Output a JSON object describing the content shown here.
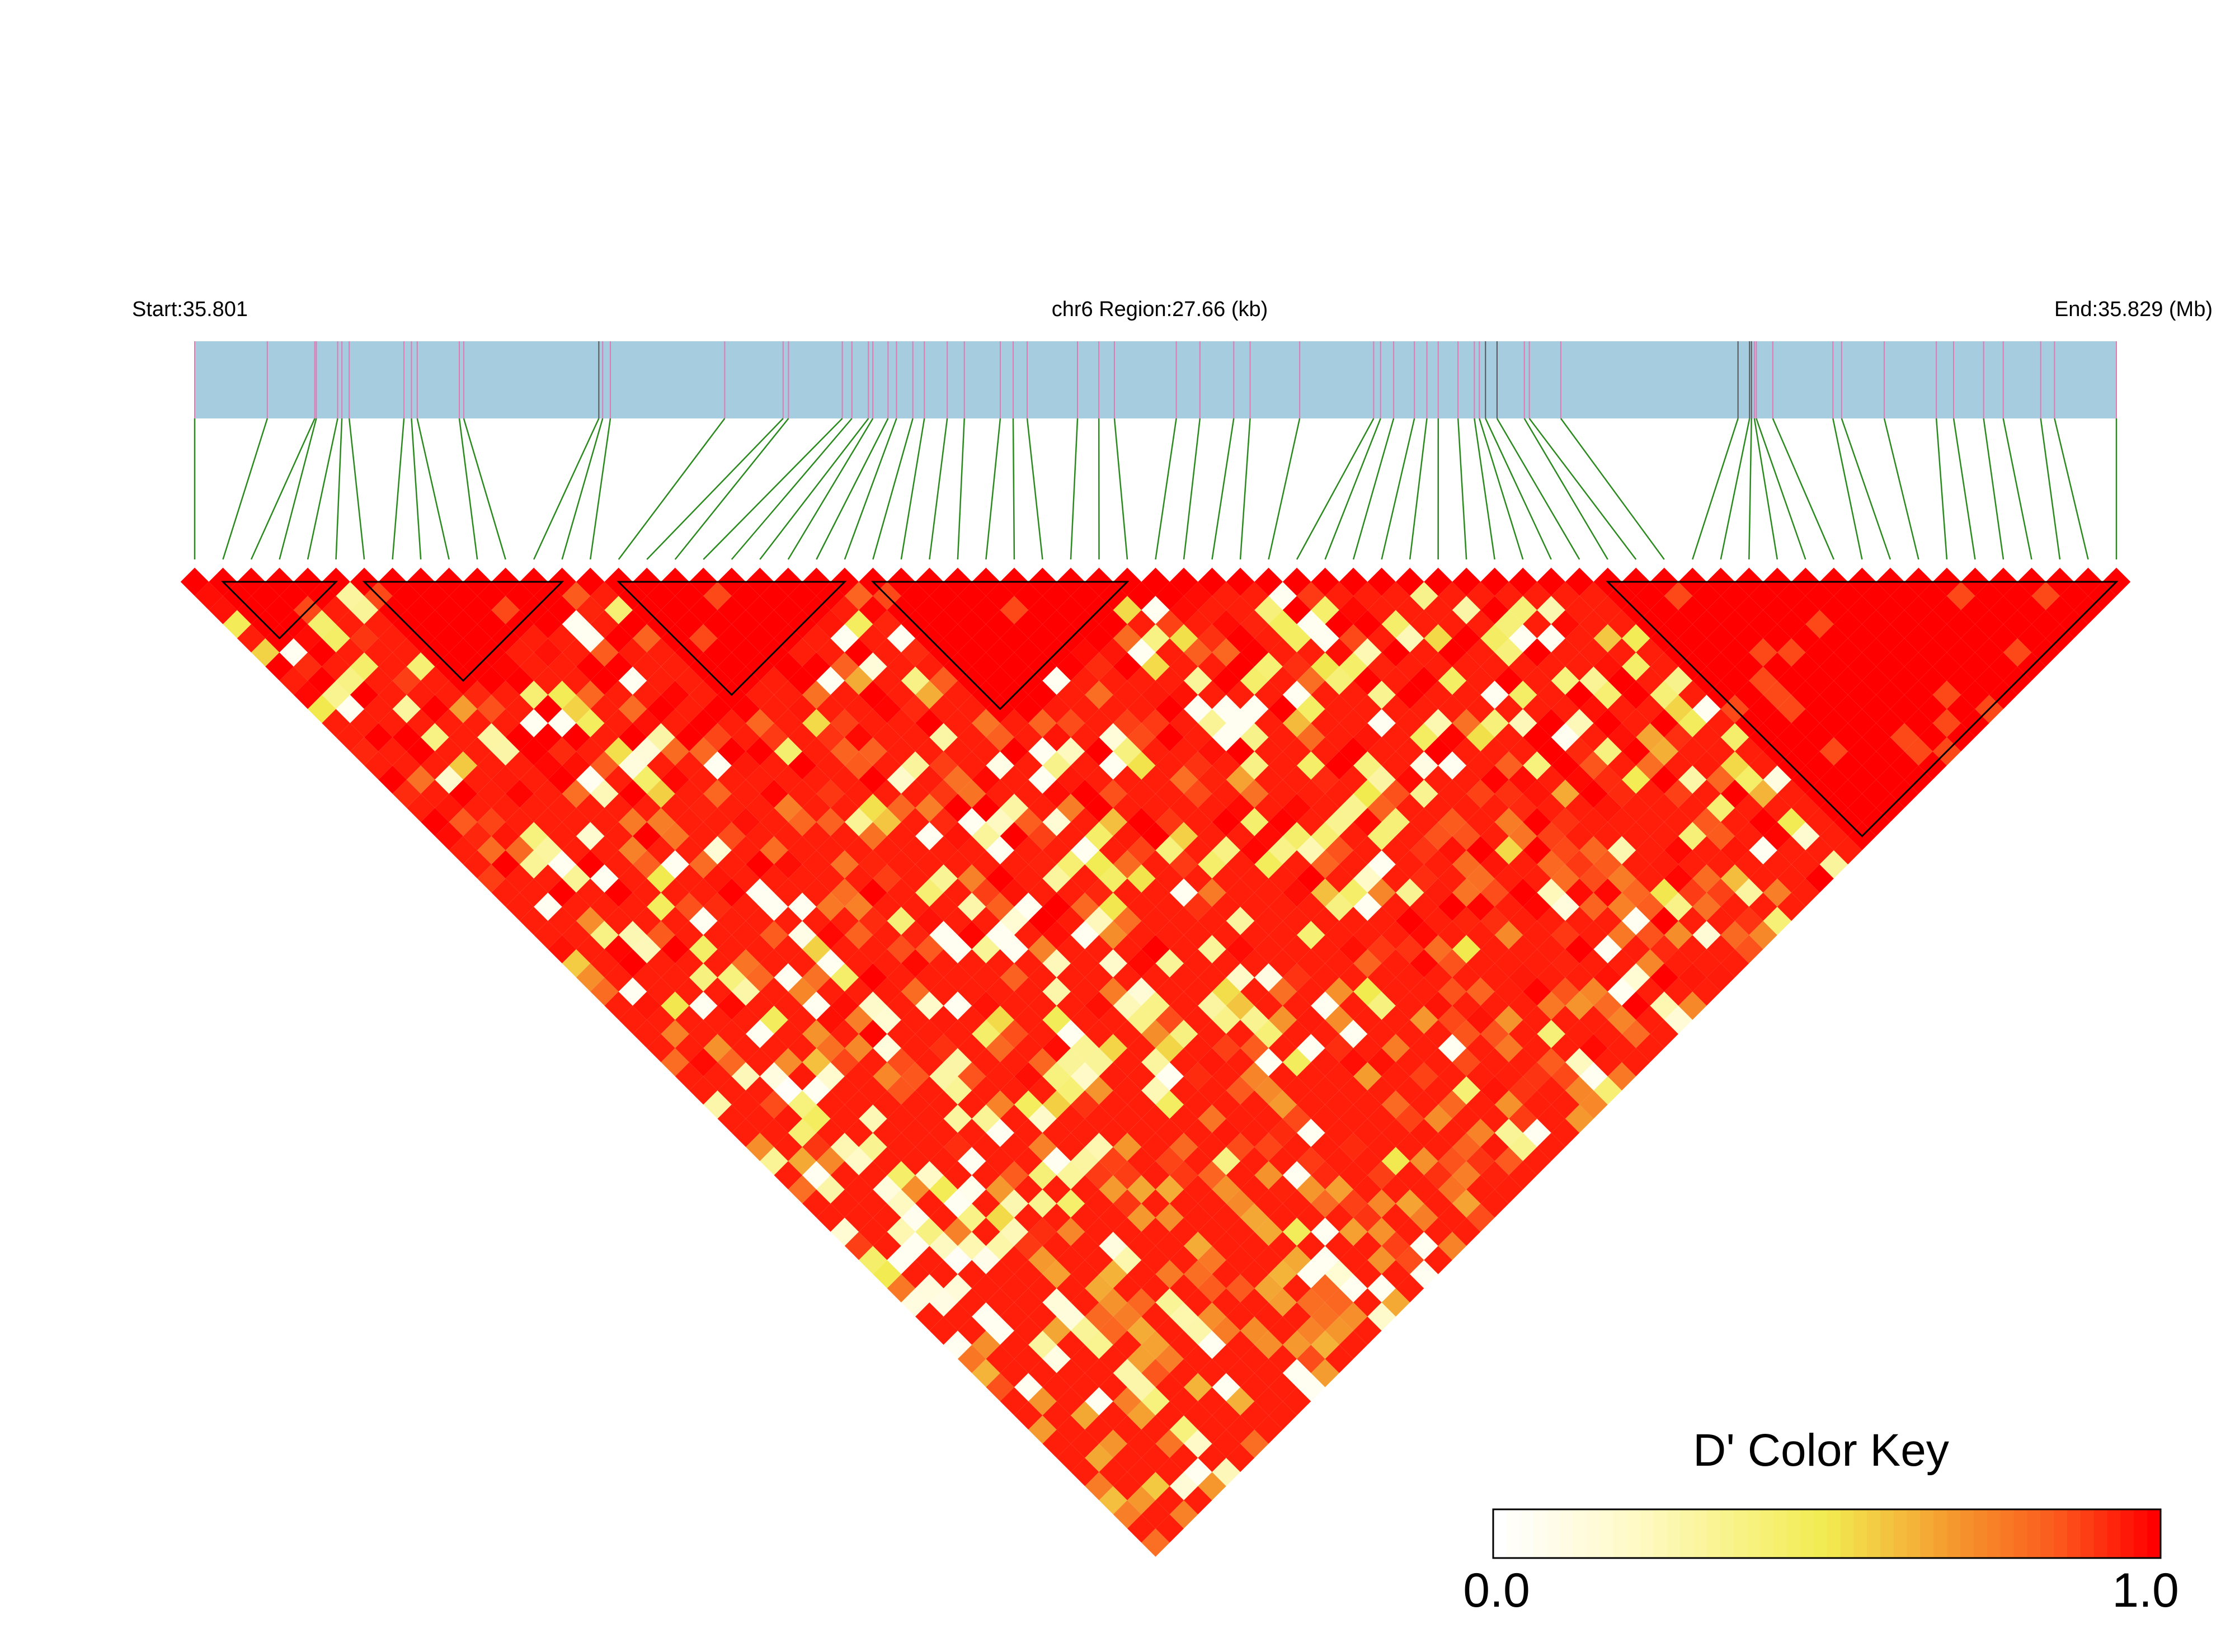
{
  "chart_data": {
    "type": "heatmap",
    "subtype": "linkage-disequilibrium-triangle",
    "header": {
      "start_label": "Start:35.801",
      "region_label": "chr6 Region:27.66 (kb)",
      "end_label": "End:35.829 (Mb)"
    },
    "color_key": {
      "title": "D' Color Key",
      "min_label": "0.0",
      "max_label": "1.0",
      "min": 0.0,
      "max": 1.0,
      "colors": [
        "#ffffff",
        "#f4ee50",
        "#f59a2e",
        "#ff0000"
      ]
    },
    "colors": {
      "gene_track": "#a6cce0",
      "snp_tick": "#e07ab0",
      "snp_tick_dark": "#555555",
      "connector": "#2a8a1e",
      "block_outline": "#000000"
    },
    "snp_count": 69,
    "snp_positions_fraction": [
      0,
      0.0378,
      0.0625,
      0.0633,
      0.0744,
      0.0766,
      0.0804,
      0.1089,
      0.1128,
      0.1158,
      0.1377,
      0.14,
      0.2103,
      0.2123,
      0.2163,
      0.2758,
      0.3062,
      0.309,
      0.337,
      0.342,
      0.3506,
      0.3529,
      0.3608,
      0.3652,
      0.3737,
      0.3797,
      0.3916,
      0.4005,
      0.4192,
      0.4259,
      0.4332,
      0.4594,
      0.4705,
      0.4786,
      0.5108,
      0.5231,
      0.5407,
      0.5492,
      0.575,
      0.6135,
      0.6171,
      0.6239,
      0.6347,
      0.6412,
      0.6471,
      0.6574,
      0.6659,
      0.6685,
      0.6717,
      0.6777,
      0.6919,
      0.6945,
      0.7109,
      0.8031,
      0.8091,
      0.8101,
      0.8116,
      0.8126,
      0.8212,
      0.8525,
      0.857,
      0.8792,
      0.9063,
      0.9153,
      0.9309,
      0.9411,
      0.9606,
      0.9678,
      1
    ],
    "blocks": [
      [
        1,
        5
      ],
      [
        6,
        13
      ],
      [
        15,
        23
      ],
      [
        24,
        33
      ],
      [
        50,
        68
      ]
    ],
    "seed": 20240611
  }
}
